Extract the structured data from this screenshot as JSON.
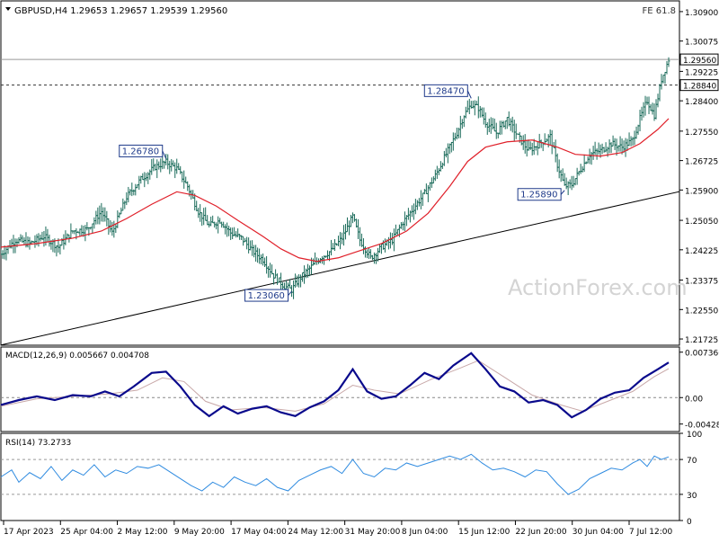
{
  "header": {
    "symbol": "GBPUSD,H4",
    "open": "1.29653",
    "high": "1.29657",
    "low": "1.29539",
    "close": "1.29560",
    "fe_label": "FE 61.8"
  },
  "watermark": "ActionForex.com",
  "colors": {
    "bars": "#1a6b5a",
    "ma": "#e0202a",
    "macd": "#0a0a8c",
    "signal": "#c8a8a8",
    "rsi": "#2f8be0",
    "trendline": "#000000",
    "border": "#000000"
  },
  "chart_data": [
    {
      "type": "ohlc",
      "title": "GBPUSD,H4",
      "y_ticks": [
        "1.30900",
        "1.30075",
        "1.29225",
        "1.28400",
        "1.27550",
        "1.26725",
        "1.25900",
        "1.25050",
        "1.24225",
        "1.23375",
        "1.22550",
        "1.21725"
      ],
      "ylim": [
        1.2155,
        1.312
      ],
      "x_ticks": [
        "17 Apr 2023",
        "25 Apr 04:00",
        "2 May 12:00",
        "9 May 20:00",
        "17 May 04:00",
        "24 May 12:00",
        "31 May 20:00",
        "8 Jun 04:00",
        "15 Jun 12:00",
        "22 Jun 20:00",
        "30 Jun 04:00",
        "7 Jul 12:00"
      ],
      "close_path": [
        [
          0,
          1.241
        ],
        [
          8,
          1.245
        ],
        [
          16,
          1.244
        ],
        [
          24,
          1.246
        ],
        [
          32,
          1.243
        ],
        [
          40,
          1.2475
        ],
        [
          48,
          1.248
        ],
        [
          56,
          1.253
        ],
        [
          62,
          1.247
        ],
        [
          70,
          1.257
        ],
        [
          78,
          1.262
        ],
        [
          86,
          1.2655
        ],
        [
          92,
          1.2668
        ],
        [
          98,
          1.265
        ],
        [
          104,
          1.26
        ],
        [
          110,
          1.253
        ],
        [
          116,
          1.249
        ],
        [
          122,
          1.2505
        ],
        [
          128,
          1.247
        ],
        [
          134,
          1.2455
        ],
        [
          140,
          1.242
        ],
        [
          146,
          1.2395
        ],
        [
          152,
          1.235
        ],
        [
          158,
          1.232
        ],
        [
          162,
          1.231
        ],
        [
          166,
          1.234
        ],
        [
          172,
          1.237
        ],
        [
          178,
          1.24
        ],
        [
          184,
          1.242
        ],
        [
          190,
          1.2455
        ],
        [
          196,
          1.2515
        ],
        [
          200,
          1.245
        ],
        [
          206,
          1.24
        ],
        [
          212,
          1.243
        ],
        [
          218,
          1.245
        ],
        [
          224,
          1.25
        ],
        [
          230,
          1.254
        ],
        [
          236,
          1.258
        ],
        [
          242,
          1.263
        ],
        [
          248,
          1.269
        ],
        [
          254,
          1.275
        ],
        [
          258,
          1.28
        ],
        [
          262,
          1.283
        ],
        [
          266,
          1.282
        ],
        [
          270,
          1.278
        ],
        [
          276,
          1.275
        ],
        [
          282,
          1.279
        ],
        [
          288,
          1.274
        ],
        [
          294,
          1.27
        ],
        [
          300,
          1.272
        ],
        [
          306,
          1.274
        ],
        [
          310,
          1.266
        ],
        [
          314,
          1.26
        ],
        [
          318,
          1.2605
        ],
        [
          322,
          1.264
        ],
        [
          328,
          1.269
        ],
        [
          334,
          1.27
        ],
        [
          340,
          1.272
        ],
        [
          346,
          1.271
        ],
        [
          352,
          1.273
        ],
        [
          356,
          1.279
        ],
        [
          360,
          1.284
        ],
        [
          364,
          1.28
        ],
        [
          368,
          1.29
        ],
        [
          372,
          1.2956
        ]
      ],
      "ma_path": [
        [
          0,
          1.243
        ],
        [
          20,
          1.244
        ],
        [
          40,
          1.2455
        ],
        [
          56,
          1.2475
        ],
        [
          70,
          1.251
        ],
        [
          84,
          1.255
        ],
        [
          98,
          1.2585
        ],
        [
          108,
          1.2575
        ],
        [
          120,
          1.2545
        ],
        [
          132,
          1.2505
        ],
        [
          146,
          1.246
        ],
        [
          156,
          1.2425
        ],
        [
          166,
          1.24
        ],
        [
          176,
          1.239
        ],
        [
          188,
          1.24
        ],
        [
          200,
          1.242
        ],
        [
          212,
          1.244
        ],
        [
          226,
          1.2475
        ],
        [
          238,
          1.2525
        ],
        [
          250,
          1.26
        ],
        [
          260,
          1.267
        ],
        [
          270,
          1.271
        ],
        [
          282,
          1.2725
        ],
        [
          296,
          1.273
        ],
        [
          310,
          1.271
        ],
        [
          320,
          1.269
        ],
        [
          334,
          1.2685
        ],
        [
          346,
          1.2695
        ],
        [
          356,
          1.272
        ],
        [
          366,
          1.276
        ],
        [
          372,
          1.279
        ]
      ],
      "trendline": [
        [
          -40,
          1.211
        ],
        [
          380,
          1.2605
        ]
      ],
      "hline_dashed": 1.2884,
      "hline_solid": 1.2956,
      "labels": [
        {
          "text": "1.26780",
          "x": 92,
          "y": 1.2678
        },
        {
          "text": "1.23060",
          "x": 162,
          "y": 1.2306
        },
        {
          "text": "1.28470",
          "x": 262,
          "y": 1.2847
        },
        {
          "text": "1.25890",
          "x": 314,
          "y": 1.2589
        }
      ],
      "price_tags": [
        {
          "text": "1.29560",
          "y": 1.2956,
          "style": "dark"
        },
        {
          "text": "1.28840",
          "y": 1.2884,
          "style": "dark"
        }
      ]
    },
    {
      "type": "line",
      "title": "MACD(12,26,9) 0.005667 0.004708",
      "y_ticks": [
        "0.007366",
        "0.00",
        "-0.004286"
      ],
      "ylim": [
        -0.0055,
        0.0082
      ],
      "macd_path": [
        [
          0,
          -0.0012
        ],
        [
          10,
          -0.0004
        ],
        [
          20,
          0.0002
        ],
        [
          30,
          -0.0004
        ],
        [
          40,
          0.0004
        ],
        [
          50,
          0.0002
        ],
        [
          58,
          0.001
        ],
        [
          66,
          0.0002
        ],
        [
          74,
          0.0018
        ],
        [
          84,
          0.004
        ],
        [
          92,
          0.0042
        ],
        [
          100,
          0.0018
        ],
        [
          108,
          -0.0012
        ],
        [
          116,
          -0.003
        ],
        [
          124,
          -0.0014
        ],
        [
          132,
          -0.0026
        ],
        [
          140,
          -0.0018
        ],
        [
          148,
          -0.0014
        ],
        [
          156,
          -0.0024
        ],
        [
          164,
          -0.003
        ],
        [
          172,
          -0.0016
        ],
        [
          180,
          -0.0006
        ],
        [
          188,
          0.0012
        ],
        [
          196,
          0.0046
        ],
        [
          204,
          0.001
        ],
        [
          212,
          -0.0002
        ],
        [
          220,
          0.0002
        ],
        [
          228,
          0.002
        ],
        [
          236,
          0.004
        ],
        [
          244,
          0.003
        ],
        [
          252,
          0.0052
        ],
        [
          262,
          0.0072
        ],
        [
          270,
          0.0046
        ],
        [
          278,
          0.0018
        ],
        [
          286,
          0.001
        ],
        [
          294,
          -0.0008
        ],
        [
          302,
          -0.0004
        ],
        [
          310,
          -0.0012
        ],
        [
          318,
          -0.0032
        ],
        [
          326,
          -0.002
        ],
        [
          334,
          -0.0002
        ],
        [
          342,
          0.0008
        ],
        [
          350,
          0.0012
        ],
        [
          358,
          0.0032
        ],
        [
          366,
          0.0046
        ],
        [
          372,
          0.0057
        ]
      ],
      "signal_path": [
        [
          0,
          -0.0014
        ],
        [
          20,
          -0.0002
        ],
        [
          40,
          0.0002
        ],
        [
          60,
          0.0006
        ],
        [
          76,
          0.0012
        ],
        [
          90,
          0.0032
        ],
        [
          102,
          0.0026
        ],
        [
          114,
          -0.0006
        ],
        [
          128,
          -0.002
        ],
        [
          146,
          -0.0016
        ],
        [
          164,
          -0.0022
        ],
        [
          180,
          -0.001
        ],
        [
          196,
          0.002
        ],
        [
          208,
          0.0012
        ],
        [
          222,
          0.0006
        ],
        [
          240,
          0.003
        ],
        [
          256,
          0.0048
        ],
        [
          266,
          0.006
        ],
        [
          280,
          0.0034
        ],
        [
          296,
          0.0004
        ],
        [
          312,
          -0.0012
        ],
        [
          324,
          -0.0022
        ],
        [
          338,
          -0.0006
        ],
        [
          352,
          0.001
        ],
        [
          364,
          0.0034
        ],
        [
          372,
          0.0047
        ]
      ]
    },
    {
      "type": "line",
      "title": "RSI(14) 73.2733",
      "y_ticks": [
        "100",
        "70",
        "30",
        "0"
      ],
      "ylim": [
        0,
        100
      ],
      "levels": [
        70,
        30
      ],
      "rsi_path": [
        [
          0,
          50
        ],
        [
          6,
          58
        ],
        [
          10,
          44
        ],
        [
          16,
          55
        ],
        [
          22,
          48
        ],
        [
          28,
          62
        ],
        [
          34,
          46
        ],
        [
          40,
          58
        ],
        [
          46,
          52
        ],
        [
          52,
          64
        ],
        [
          58,
          50
        ],
        [
          64,
          58
        ],
        [
          70,
          54
        ],
        [
          76,
          62
        ],
        [
          82,
          60
        ],
        [
          88,
          64
        ],
        [
          94,
          56
        ],
        [
          100,
          48
        ],
        [
          106,
          40
        ],
        [
          112,
          34
        ],
        [
          118,
          44
        ],
        [
          124,
          38
        ],
        [
          130,
          50
        ],
        [
          136,
          44
        ],
        [
          142,
          40
        ],
        [
          148,
          48
        ],
        [
          154,
          38
        ],
        [
          160,
          34
        ],
        [
          166,
          46
        ],
        [
          172,
          52
        ],
        [
          178,
          58
        ],
        [
          184,
          62
        ],
        [
          190,
          54
        ],
        [
          196,
          70
        ],
        [
          202,
          54
        ],
        [
          208,
          50
        ],
        [
          214,
          60
        ],
        [
          220,
          58
        ],
        [
          226,
          66
        ],
        [
          232,
          62
        ],
        [
          238,
          66
        ],
        [
          244,
          70
        ],
        [
          250,
          74
        ],
        [
          256,
          70
        ],
        [
          262,
          76
        ],
        [
          268,
          66
        ],
        [
          274,
          58
        ],
        [
          280,
          60
        ],
        [
          286,
          56
        ],
        [
          292,
          50
        ],
        [
          298,
          58
        ],
        [
          304,
          56
        ],
        [
          310,
          42
        ],
        [
          316,
          30
        ],
        [
          322,
          36
        ],
        [
          328,
          48
        ],
        [
          334,
          54
        ],
        [
          340,
          60
        ],
        [
          346,
          58
        ],
        [
          352,
          66
        ],
        [
          356,
          70
        ],
        [
          360,
          62
        ],
        [
          364,
          74
        ],
        [
          368,
          70
        ],
        [
          372,
          73
        ]
      ]
    }
  ]
}
